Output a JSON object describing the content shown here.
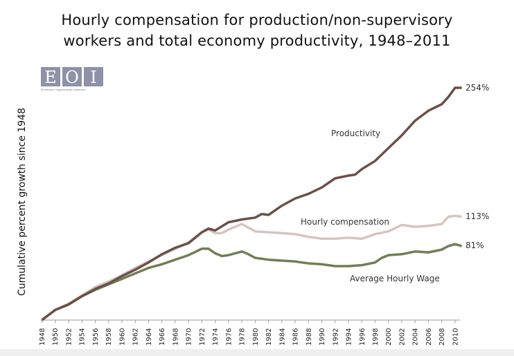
{
  "chart_data": {
    "type": "line",
    "title_lines": [
      "Hourly compensation for production/non-supervisory",
      "workers and total economy productivity, 1948–2011"
    ],
    "xlabel": "",
    "ylabel": "Cumulative percent growth since 1948",
    "xlim": [
      1948,
      2011
    ],
    "ylim": [
      0,
      254
    ],
    "grid": false,
    "legend": "inline labels",
    "x_ticks": [
      "1948",
      "1950",
      "1952",
      "1954",
      "1956",
      "1958",
      "1960",
      "1962",
      "1964",
      "1966",
      "1968",
      "1970",
      "1972",
      "1974",
      "1976",
      "1978",
      "1980",
      "1982",
      "1984",
      "1986",
      "1988",
      "1990",
      "1992",
      "1994",
      "1996",
      "1998",
      "2000",
      "2002",
      "2004",
      "2006",
      "2008",
      "2010"
    ],
    "series": [
      {
        "name": "Productivity",
        "color": "#6b5048",
        "end_label": "254%",
        "points": [
          [
            1948,
            0
          ],
          [
            1950,
            11
          ],
          [
            1952,
            17
          ],
          [
            1954,
            26
          ],
          [
            1956,
            34
          ],
          [
            1958,
            40
          ],
          [
            1960,
            48
          ],
          [
            1962,
            55
          ],
          [
            1964,
            63
          ],
          [
            1966,
            72
          ],
          [
            1968,
            79
          ],
          [
            1970,
            84
          ],
          [
            1972,
            96
          ],
          [
            1973,
            100
          ],
          [
            1974,
            98
          ],
          [
            1976,
            107
          ],
          [
            1978,
            110
          ],
          [
            1980,
            112
          ],
          [
            1981,
            116
          ],
          [
            1982,
            115
          ],
          [
            1984,
            125
          ],
          [
            1986,
            133
          ],
          [
            1988,
            138
          ],
          [
            1990,
            145
          ],
          [
            1992,
            155
          ],
          [
            1994,
            158
          ],
          [
            1995,
            159
          ],
          [
            1996,
            165
          ],
          [
            1998,
            174
          ],
          [
            2000,
            188
          ],
          [
            2002,
            202
          ],
          [
            2004,
            218
          ],
          [
            2006,
            229
          ],
          [
            2008,
            236
          ],
          [
            2009,
            244
          ],
          [
            2010,
            254
          ],
          [
            2011,
            254
          ]
        ]
      },
      {
        "name": "Hourly compensation",
        "color": "#d6c4bf",
        "end_label": "113%",
        "points": [
          [
            1948,
            0
          ],
          [
            1950,
            11
          ],
          [
            1952,
            18
          ],
          [
            1954,
            27
          ],
          [
            1956,
            36
          ],
          [
            1958,
            42
          ],
          [
            1960,
            49
          ],
          [
            1962,
            57
          ],
          [
            1964,
            64
          ],
          [
            1966,
            71
          ],
          [
            1968,
            78
          ],
          [
            1970,
            85
          ],
          [
            1972,
            96
          ],
          [
            1973,
            99
          ],
          [
            1974,
            95
          ],
          [
            1975,
            95
          ],
          [
            1976,
            99
          ],
          [
            1978,
            105
          ],
          [
            1980,
            97
          ],
          [
            1982,
            96
          ],
          [
            1984,
            95
          ],
          [
            1986,
            94
          ],
          [
            1988,
            91
          ],
          [
            1990,
            89
          ],
          [
            1992,
            89
          ],
          [
            1994,
            90
          ],
          [
            1996,
            89
          ],
          [
            1998,
            94
          ],
          [
            2000,
            97
          ],
          [
            2002,
            104
          ],
          [
            2004,
            102
          ],
          [
            2006,
            103
          ],
          [
            2008,
            105
          ],
          [
            2009,
            113
          ],
          [
            2010,
            114
          ],
          [
            2011,
            113
          ]
        ]
      },
      {
        "name": "Average Hourly Wage",
        "color": "#6f7f52",
        "end_label": "81%",
        "points": [
          [
            1948,
            0
          ],
          [
            1950,
            11
          ],
          [
            1952,
            17
          ],
          [
            1954,
            26
          ],
          [
            1956,
            33
          ],
          [
            1958,
            39
          ],
          [
            1960,
            45
          ],
          [
            1962,
            51
          ],
          [
            1964,
            57
          ],
          [
            1966,
            61
          ],
          [
            1968,
            66
          ],
          [
            1970,
            71
          ],
          [
            1972,
            78
          ],
          [
            1973,
            78
          ],
          [
            1974,
            73
          ],
          [
            1975,
            70
          ],
          [
            1976,
            71
          ],
          [
            1978,
            75
          ],
          [
            1979,
            72
          ],
          [
            1980,
            68
          ],
          [
            1982,
            66
          ],
          [
            1984,
            65
          ],
          [
            1986,
            64
          ],
          [
            1988,
            62
          ],
          [
            1990,
            61
          ],
          [
            1992,
            59
          ],
          [
            1994,
            59
          ],
          [
            1996,
            60
          ],
          [
            1998,
            63
          ],
          [
            1999,
            68
          ],
          [
            2000,
            71
          ],
          [
            2002,
            72
          ],
          [
            2004,
            75
          ],
          [
            2006,
            74
          ],
          [
            2008,
            77
          ],
          [
            2009,
            81
          ],
          [
            2010,
            83
          ],
          [
            2011,
            81
          ]
        ]
      }
    ]
  },
  "logo": {
    "letters": [
      "E",
      "O",
      "I"
    ],
    "subtitle": "Economic Opportunity Institute",
    "color": "#8e91a8"
  }
}
